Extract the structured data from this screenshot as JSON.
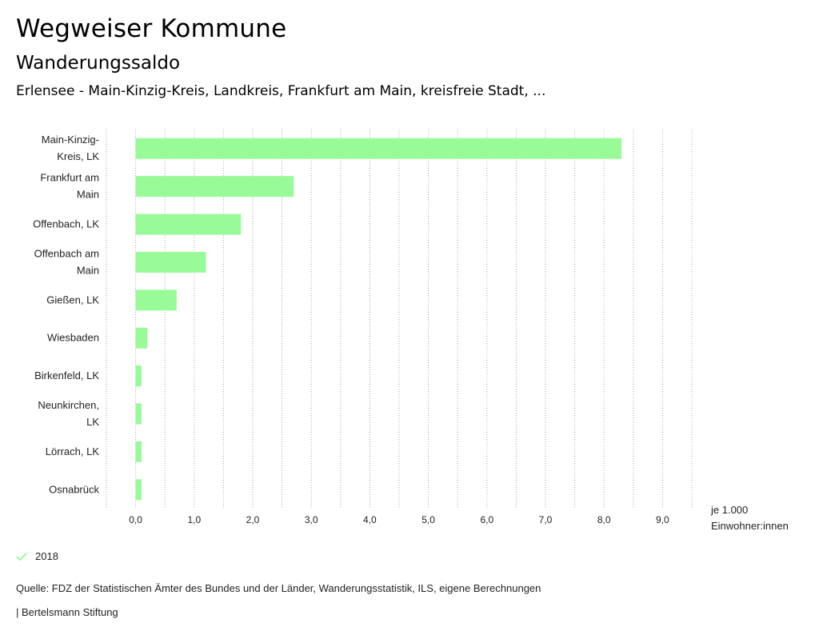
{
  "header": {
    "title": "Wegweiser Kommune",
    "subtitle": "Wanderungssaldo",
    "region": "Erlensee - Main-Kinzig-Kreis, Landkreis, Frankfurt am Main, kreisfreie Stadt, ..."
  },
  "chart_data": {
    "type": "bar",
    "orientation": "horizontal",
    "categories": [
      [
        "Main-Kinzig-",
        "Kreis, LK"
      ],
      [
        "Frankfurt am",
        "Main"
      ],
      [
        "Offenbach, LK"
      ],
      [
        "Offenbach am",
        "Main"
      ],
      [
        "Gießen, LK"
      ],
      [
        "Wiesbaden"
      ],
      [
        "Birkenfeld, LK"
      ],
      [
        "Neunkirchen,",
        "LK"
      ],
      [
        "Lörrach, LK"
      ],
      [
        "Osnabrück"
      ]
    ],
    "values": [
      8.3,
      2.7,
      1.8,
      1.2,
      0.7,
      0.2,
      0.1,
      0.1,
      0.1,
      0.1
    ],
    "xlim": [
      -0.5,
      9.5
    ],
    "ticks": [
      0,
      1,
      2,
      3,
      4,
      5,
      6,
      7,
      8,
      9
    ],
    "tick_labels": [
      "0,0",
      "1,0",
      "2,0",
      "3,0",
      "4,0",
      "5,0",
      "6,0",
      "7,0",
      "8,0",
      "9,0"
    ],
    "unit_label": [
      "je 1.000",
      "Einwohner:innen"
    ],
    "series_name": "2018",
    "bar_color": "#98fb98",
    "grid_color": "#aaaaaa"
  },
  "legend": {
    "label": "2018"
  },
  "footer": {
    "source": "Quelle: FDZ der Statistischen Ämter des Bundes und der Länder, Wanderungsstatistik, ILS, eigene Berechnungen",
    "credit": "| Bertelsmann Stiftung"
  }
}
